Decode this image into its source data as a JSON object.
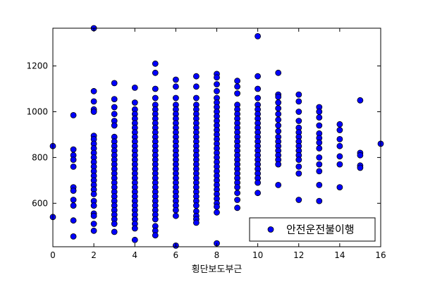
{
  "chart_data": {
    "type": "scatter",
    "title": "",
    "xlabel": "횡단보도부근",
    "ylabel": "",
    "xlim": [
      0,
      16
    ],
    "ylim": [
      410,
      1365
    ],
    "x_ticks": [
      0,
      2,
      4,
      6,
      8,
      10,
      12,
      14,
      16
    ],
    "y_ticks": [
      600,
      800,
      1000,
      1200
    ],
    "grid": false,
    "legend_position": "bottom-right",
    "marker_color": "#0000ff",
    "series": [
      {
        "name": "안전운전불이행",
        "points": [
          [
            0,
            850
          ],
          [
            0,
            540
          ],
          [
            1,
            985
          ],
          [
            1,
            835
          ],
          [
            1,
            810
          ],
          [
            1,
            790
          ],
          [
            1,
            760
          ],
          [
            1,
            670
          ],
          [
            1,
            655
          ],
          [
            1,
            615
          ],
          [
            1,
            590
          ],
          [
            1,
            525
          ],
          [
            1,
            455
          ],
          [
            2,
            1365
          ],
          [
            2,
            1090
          ],
          [
            2,
            1045
          ],
          [
            2,
            1010
          ],
          [
            2,
            1000
          ],
          [
            2,
            895
          ],
          [
            2,
            880
          ],
          [
            2,
            860
          ],
          [
            2,
            840
          ],
          [
            2,
            820
          ],
          [
            2,
            800
          ],
          [
            2,
            780
          ],
          [
            2,
            760
          ],
          [
            2,
            740
          ],
          [
            2,
            720
          ],
          [
            2,
            700
          ],
          [
            2,
            680
          ],
          [
            2,
            660
          ],
          [
            2,
            640
          ],
          [
            2,
            610
          ],
          [
            2,
            590
          ],
          [
            2,
            555
          ],
          [
            2,
            545
          ],
          [
            2,
            510
          ],
          [
            2,
            480
          ],
          [
            3,
            1125
          ],
          [
            3,
            1055
          ],
          [
            3,
            1020
          ],
          [
            3,
            990
          ],
          [
            3,
            960
          ],
          [
            3,
            940
          ],
          [
            3,
            890
          ],
          [
            3,
            870
          ],
          [
            3,
            850
          ],
          [
            3,
            830
          ],
          [
            3,
            810
          ],
          [
            3,
            790
          ],
          [
            3,
            770
          ],
          [
            3,
            750
          ],
          [
            3,
            730
          ],
          [
            3,
            710
          ],
          [
            3,
            690
          ],
          [
            3,
            670
          ],
          [
            3,
            650
          ],
          [
            3,
            630
          ],
          [
            3,
            610
          ],
          [
            3,
            590
          ],
          [
            3,
            570
          ],
          [
            3,
            550
          ],
          [
            3,
            530
          ],
          [
            3,
            510
          ],
          [
            3,
            475
          ],
          [
            4,
            1105
          ],
          [
            4,
            1040
          ],
          [
            4,
            1010
          ],
          [
            4,
            990
          ],
          [
            4,
            970
          ],
          [
            4,
            950
          ],
          [
            4,
            930
          ],
          [
            4,
            910
          ],
          [
            4,
            890
          ],
          [
            4,
            870
          ],
          [
            4,
            850
          ],
          [
            4,
            830
          ],
          [
            4,
            810
          ],
          [
            4,
            790
          ],
          [
            4,
            770
          ],
          [
            4,
            750
          ],
          [
            4,
            730
          ],
          [
            4,
            710
          ],
          [
            4,
            690
          ],
          [
            4,
            670
          ],
          [
            4,
            650
          ],
          [
            4,
            630
          ],
          [
            4,
            610
          ],
          [
            4,
            590
          ],
          [
            4,
            570
          ],
          [
            4,
            550
          ],
          [
            4,
            530
          ],
          [
            4,
            510
          ],
          [
            4,
            490
          ],
          [
            4,
            440
          ],
          [
            5,
            1210
          ],
          [
            5,
            1170
          ],
          [
            5,
            1100
          ],
          [
            5,
            1060
          ],
          [
            5,
            1030
          ],
          [
            5,
            1010
          ],
          [
            5,
            990
          ],
          [
            5,
            970
          ],
          [
            5,
            950
          ],
          [
            5,
            930
          ],
          [
            5,
            910
          ],
          [
            5,
            890
          ],
          [
            5,
            870
          ],
          [
            5,
            850
          ],
          [
            5,
            830
          ],
          [
            5,
            810
          ],
          [
            5,
            790
          ],
          [
            5,
            770
          ],
          [
            5,
            750
          ],
          [
            5,
            730
          ],
          [
            5,
            710
          ],
          [
            5,
            690
          ],
          [
            5,
            670
          ],
          [
            5,
            650
          ],
          [
            5,
            630
          ],
          [
            5,
            610
          ],
          [
            5,
            590
          ],
          [
            5,
            570
          ],
          [
            5,
            550
          ],
          [
            5,
            530
          ],
          [
            5,
            500
          ],
          [
            5,
            480
          ],
          [
            5,
            460
          ],
          [
            6,
            1140
          ],
          [
            6,
            1110
          ],
          [
            6,
            1060
          ],
          [
            6,
            1030
          ],
          [
            6,
            1010
          ],
          [
            6,
            990
          ],
          [
            6,
            970
          ],
          [
            6,
            950
          ],
          [
            6,
            930
          ],
          [
            6,
            910
          ],
          [
            6,
            890
          ],
          [
            6,
            870
          ],
          [
            6,
            850
          ],
          [
            6,
            830
          ],
          [
            6,
            810
          ],
          [
            6,
            790
          ],
          [
            6,
            770
          ],
          [
            6,
            750
          ],
          [
            6,
            730
          ],
          [
            6,
            710
          ],
          [
            6,
            690
          ],
          [
            6,
            670
          ],
          [
            6,
            650
          ],
          [
            6,
            630
          ],
          [
            6,
            610
          ],
          [
            6,
            590
          ],
          [
            6,
            570
          ],
          [
            6,
            545
          ],
          [
            6,
            415
          ],
          [
            7,
            1155
          ],
          [
            7,
            1110
          ],
          [
            7,
            1060
          ],
          [
            7,
            1030
          ],
          [
            7,
            1010
          ],
          [
            7,
            990
          ],
          [
            7,
            970
          ],
          [
            7,
            950
          ],
          [
            7,
            930
          ],
          [
            7,
            910
          ],
          [
            7,
            890
          ],
          [
            7,
            870
          ],
          [
            7,
            850
          ],
          [
            7,
            830
          ],
          [
            7,
            810
          ],
          [
            7,
            790
          ],
          [
            7,
            770
          ],
          [
            7,
            750
          ],
          [
            7,
            730
          ],
          [
            7,
            710
          ],
          [
            7,
            690
          ],
          [
            7,
            670
          ],
          [
            7,
            650
          ],
          [
            7,
            630
          ],
          [
            7,
            610
          ],
          [
            7,
            590
          ],
          [
            7,
            565
          ],
          [
            7,
            545
          ],
          [
            7,
            530
          ],
          [
            7,
            515
          ],
          [
            8,
            1165
          ],
          [
            8,
            1150
          ],
          [
            8,
            1120
          ],
          [
            8,
            1090
          ],
          [
            8,
            1060
          ],
          [
            8,
            1040
          ],
          [
            8,
            1020
          ],
          [
            8,
            1000
          ],
          [
            8,
            980
          ],
          [
            8,
            960
          ],
          [
            8,
            940
          ],
          [
            8,
            920
          ],
          [
            8,
            900
          ],
          [
            8,
            880
          ],
          [
            8,
            860
          ],
          [
            8,
            840
          ],
          [
            8,
            820
          ],
          [
            8,
            800
          ],
          [
            8,
            780
          ],
          [
            8,
            760
          ],
          [
            8,
            740
          ],
          [
            8,
            720
          ],
          [
            8,
            700
          ],
          [
            8,
            680
          ],
          [
            8,
            660
          ],
          [
            8,
            640
          ],
          [
            8,
            620
          ],
          [
            8,
            600
          ],
          [
            8,
            585
          ],
          [
            8,
            560
          ],
          [
            8,
            425
          ],
          [
            9,
            1135
          ],
          [
            9,
            1110
          ],
          [
            9,
            1080
          ],
          [
            9,
            1030
          ],
          [
            9,
            1010
          ],
          [
            9,
            990
          ],
          [
            9,
            970
          ],
          [
            9,
            950
          ],
          [
            9,
            930
          ],
          [
            9,
            910
          ],
          [
            9,
            890
          ],
          [
            9,
            870
          ],
          [
            9,
            850
          ],
          [
            9,
            830
          ],
          [
            9,
            810
          ],
          [
            9,
            790
          ],
          [
            9,
            770
          ],
          [
            9,
            750
          ],
          [
            9,
            730
          ],
          [
            9,
            710
          ],
          [
            9,
            690
          ],
          [
            9,
            670
          ],
          [
            9,
            645
          ],
          [
            9,
            615
          ],
          [
            9,
            580
          ],
          [
            10,
            1330
          ],
          [
            10,
            1155
          ],
          [
            10,
            1100
          ],
          [
            10,
            1060
          ],
          [
            10,
            1030
          ],
          [
            10,
            1010
          ],
          [
            10,
            990
          ],
          [
            10,
            970
          ],
          [
            10,
            950
          ],
          [
            10,
            930
          ],
          [
            10,
            910
          ],
          [
            10,
            890
          ],
          [
            10,
            870
          ],
          [
            10,
            850
          ],
          [
            10,
            830
          ],
          [
            10,
            810
          ],
          [
            10,
            790
          ],
          [
            10,
            770
          ],
          [
            10,
            750
          ],
          [
            10,
            730
          ],
          [
            10,
            710
          ],
          [
            10,
            690
          ],
          [
            10,
            645
          ],
          [
            11,
            1170
          ],
          [
            11,
            1075
          ],
          [
            11,
            1065
          ],
          [
            11,
            1040
          ],
          [
            11,
            1015
          ],
          [
            11,
            990
          ],
          [
            11,
            965
          ],
          [
            11,
            940
          ],
          [
            11,
            915
          ],
          [
            11,
            890
          ],
          [
            11,
            870
          ],
          [
            11,
            850
          ],
          [
            11,
            830
          ],
          [
            11,
            810
          ],
          [
            11,
            790
          ],
          [
            11,
            770
          ],
          [
            11,
            680
          ],
          [
            12,
            1075
          ],
          [
            12,
            1045
          ],
          [
            12,
            1000
          ],
          [
            12,
            960
          ],
          [
            12,
            930
          ],
          [
            12,
            910
          ],
          [
            12,
            890
          ],
          [
            12,
            870
          ],
          [
            12,
            850
          ],
          [
            12,
            830
          ],
          [
            12,
            810
          ],
          [
            12,
            790
          ],
          [
            12,
            760
          ],
          [
            12,
            730
          ],
          [
            12,
            615
          ],
          [
            13,
            1020
          ],
          [
            13,
            1000
          ],
          [
            13,
            975
          ],
          [
            13,
            940
          ],
          [
            13,
            905
          ],
          [
            13,
            885
          ],
          [
            13,
            865
          ],
          [
            13,
            840
          ],
          [
            13,
            800
          ],
          [
            13,
            770
          ],
          [
            13,
            740
          ],
          [
            13,
            680
          ],
          [
            13,
            610
          ],
          [
            14,
            945
          ],
          [
            14,
            920
          ],
          [
            14,
            880
          ],
          [
            14,
            850
          ],
          [
            14,
            805
          ],
          [
            14,
            770
          ],
          [
            14,
            670
          ],
          [
            15,
            1050
          ],
          [
            15,
            820
          ],
          [
            15,
            810
          ],
          [
            15,
            765
          ],
          [
            15,
            755
          ],
          [
            16,
            860
          ]
        ]
      }
    ]
  }
}
